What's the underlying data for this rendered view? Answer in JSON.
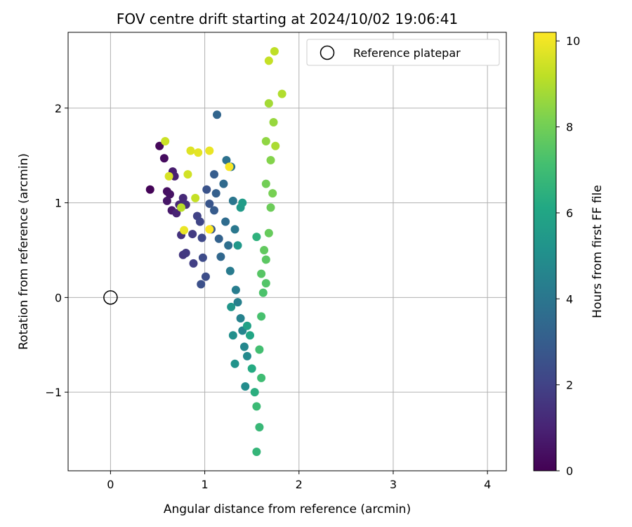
{
  "chart_data": {
    "type": "scatter",
    "title": "FOV centre drift starting at 2024/10/02 19:06:41",
    "xlabel": "Angular distance from reference (arcmin)",
    "ylabel": "Rotation from reference (arcmin)",
    "xlim": [
      -0.45,
      4.2
    ],
    "ylim": [
      -1.83,
      2.8
    ],
    "xticks": [
      0,
      1,
      2,
      3,
      4
    ],
    "xtick_labels": [
      "0",
      "1",
      "2",
      "3",
      "4"
    ],
    "yticks": [
      -1,
      0,
      1,
      2
    ],
    "ytick_labels": [
      "−1",
      "0",
      "1",
      "2"
    ],
    "grid": true,
    "legend": {
      "placement": "top-right",
      "entries": [
        "Reference platepar"
      ]
    },
    "reference_point": {
      "name": "Reference platepar",
      "x": 0,
      "y": 0
    },
    "colorbar": {
      "label": "Hours from first FF file",
      "colormap": "viridis",
      "range": [
        0,
        10.2
      ],
      "ticks": [
        0,
        2,
        4,
        6,
        8,
        10
      ],
      "tick_labels": [
        "0",
        "2",
        "4",
        "6",
        "8",
        "10"
      ]
    },
    "series": [
      {
        "color_by": "hours",
        "points": [
          {
            "x": 0.42,
            "y": 1.14,
            "c": 0.1
          },
          {
            "x": 0.52,
            "y": 1.6,
            "c": 0.2
          },
          {
            "x": 0.57,
            "y": 1.47,
            "c": 0.3
          },
          {
            "x": 0.6,
            "y": 1.12,
            "c": 0.4
          },
          {
            "x": 0.63,
            "y": 1.09,
            "c": 0.5
          },
          {
            "x": 0.6,
            "y": 1.02,
            "c": 0.6
          },
          {
            "x": 0.65,
            "y": 0.92,
            "c": 0.7
          },
          {
            "x": 0.66,
            "y": 1.33,
            "c": 0.8
          },
          {
            "x": 0.68,
            "y": 1.28,
            "c": 0.9
          },
          {
            "x": 0.7,
            "y": 0.89,
            "c": 1.0
          },
          {
            "x": 0.73,
            "y": 0.98,
            "c": 1.1
          },
          {
            "x": 0.77,
            "y": 1.05,
            "c": 1.2
          },
          {
            "x": 0.8,
            "y": 0.98,
            "c": 1.4
          },
          {
            "x": 0.75,
            "y": 0.66,
            "c": 1.5
          },
          {
            "x": 0.77,
            "y": 0.45,
            "c": 1.6
          },
          {
            "x": 0.8,
            "y": 0.47,
            "c": 1.7
          },
          {
            "x": 0.87,
            "y": 0.67,
            "c": 1.8
          },
          {
            "x": 0.88,
            "y": 0.36,
            "c": 1.9
          },
          {
            "x": 0.92,
            "y": 0.86,
            "c": 2.0
          },
          {
            "x": 0.95,
            "y": 0.8,
            "c": 2.1
          },
          {
            "x": 0.97,
            "y": 0.63,
            "c": 2.2
          },
          {
            "x": 0.98,
            "y": 0.42,
            "c": 2.3
          },
          {
            "x": 1.01,
            "y": 0.22,
            "c": 2.4
          },
          {
            "x": 0.96,
            "y": 0.14,
            "c": 2.5
          },
          {
            "x": 1.02,
            "y": 1.14,
            "c": 2.6
          },
          {
            "x": 1.05,
            "y": 0.99,
            "c": 2.7
          },
          {
            "x": 1.07,
            "y": 0.72,
            "c": 2.8
          },
          {
            "x": 1.1,
            "y": 0.92,
            "c": 2.9
          },
          {
            "x": 1.1,
            "y": 1.3,
            "c": 3.0
          },
          {
            "x": 1.12,
            "y": 1.1,
            "c": 3.1
          },
          {
            "x": 1.15,
            "y": 0.62,
            "c": 3.2
          },
          {
            "x": 1.13,
            "y": 1.93,
            "c": 3.3
          },
          {
            "x": 1.17,
            "y": 0.43,
            "c": 3.4
          },
          {
            "x": 1.2,
            "y": 1.2,
            "c": 3.5
          },
          {
            "x": 1.22,
            "y": 0.8,
            "c": 3.6
          },
          {
            "x": 1.25,
            "y": 0.55,
            "c": 3.7
          },
          {
            "x": 1.23,
            "y": 1.45,
            "c": 3.8
          },
          {
            "x": 1.28,
            "y": 1.38,
            "c": 3.9
          },
          {
            "x": 1.3,
            "y": 1.02,
            "c": 4.0
          },
          {
            "x": 1.32,
            "y": 0.72,
            "c": 4.1
          },
          {
            "x": 1.27,
            "y": 0.28,
            "c": 4.2
          },
          {
            "x": 1.33,
            "y": 0.08,
            "c": 4.3
          },
          {
            "x": 1.35,
            "y": -0.05,
            "c": 4.4
          },
          {
            "x": 1.38,
            "y": -0.22,
            "c": 4.5
          },
          {
            "x": 1.4,
            "y": -0.35,
            "c": 4.6
          },
          {
            "x": 1.42,
            "y": -0.52,
            "c": 4.7
          },
          {
            "x": 1.45,
            "y": -0.62,
            "c": 4.8
          },
          {
            "x": 1.43,
            "y": -0.94,
            "c": 4.9
          },
          {
            "x": 1.3,
            "y": -0.4,
            "c": 5.0
          },
          {
            "x": 1.32,
            "y": -0.7,
            "c": 5.2
          },
          {
            "x": 1.28,
            "y": -0.1,
            "c": 5.3
          },
          {
            "x": 1.35,
            "y": 0.55,
            "c": 5.4
          },
          {
            "x": 1.38,
            "y": 0.95,
            "c": 5.5
          },
          {
            "x": 1.4,
            "y": 1.0,
            "c": 5.6
          },
          {
            "x": 1.45,
            "y": -0.3,
            "c": 5.8
          },
          {
            "x": 1.48,
            "y": -0.4,
            "c": 6.0
          },
          {
            "x": 1.5,
            "y": -0.75,
            "c": 6.2
          },
          {
            "x": 1.53,
            "y": -1.0,
            "c": 6.4
          },
          {
            "x": 1.55,
            "y": 0.64,
            "c": 6.5
          },
          {
            "x": 1.55,
            "y": -1.63,
            "c": 6.7
          },
          {
            "x": 1.58,
            "y": -1.37,
            "c": 6.8
          },
          {
            "x": 1.55,
            "y": -1.15,
            "c": 6.9
          },
          {
            "x": 1.6,
            "y": -0.85,
            "c": 7.0
          },
          {
            "x": 1.58,
            "y": -0.55,
            "c": 7.1
          },
          {
            "x": 1.6,
            "y": -0.2,
            "c": 7.2
          },
          {
            "x": 1.62,
            "y": 0.05,
            "c": 7.3
          },
          {
            "x": 1.65,
            "y": 0.15,
            "c": 7.4
          },
          {
            "x": 1.6,
            "y": 0.25,
            "c": 7.5
          },
          {
            "x": 1.65,
            "y": 0.4,
            "c": 7.6
          },
          {
            "x": 1.63,
            "y": 0.5,
            "c": 7.7
          },
          {
            "x": 1.68,
            "y": 0.68,
            "c": 7.8
          },
          {
            "x": 1.7,
            "y": 0.95,
            "c": 7.9
          },
          {
            "x": 1.65,
            "y": 1.2,
            "c": 8.0
          },
          {
            "x": 1.72,
            "y": 1.1,
            "c": 8.1
          },
          {
            "x": 1.7,
            "y": 1.45,
            "c": 8.3
          },
          {
            "x": 1.65,
            "y": 1.65,
            "c": 8.5
          },
          {
            "x": 1.73,
            "y": 1.85,
            "c": 8.6
          },
          {
            "x": 1.68,
            "y": 2.05,
            "c": 8.8
          },
          {
            "x": 1.75,
            "y": 1.6,
            "c": 8.9
          },
          {
            "x": 1.82,
            "y": 2.15,
            "c": 9.0
          },
          {
            "x": 1.74,
            "y": 2.6,
            "c": 9.2
          },
          {
            "x": 1.68,
            "y": 2.5,
            "c": 9.3
          },
          {
            "x": 0.58,
            "y": 1.65,
            "c": 9.4
          },
          {
            "x": 0.62,
            "y": 1.28,
            "c": 9.6
          },
          {
            "x": 0.85,
            "y": 1.55,
            "c": 9.7
          },
          {
            "x": 0.93,
            "y": 1.53,
            "c": 9.8
          },
          {
            "x": 1.05,
            "y": 1.55,
            "c": 9.9
          },
          {
            "x": 1.26,
            "y": 1.38,
            "c": 10.1
          },
          {
            "x": 1.05,
            "y": 0.72,
            "c": 10.2
          },
          {
            "x": 0.78,
            "y": 0.71,
            "c": 9.9
          },
          {
            "x": 0.82,
            "y": 1.3,
            "c": 9.5
          },
          {
            "x": 0.9,
            "y": 1.05,
            "c": 9.3
          },
          {
            "x": 0.75,
            "y": 0.95,
            "c": 9.1
          }
        ]
      }
    ]
  }
}
